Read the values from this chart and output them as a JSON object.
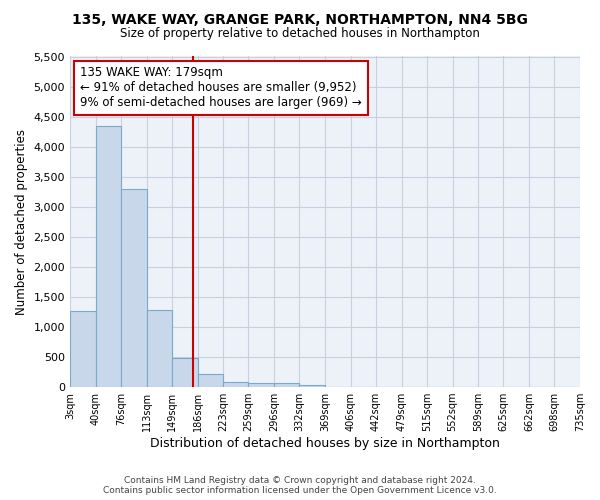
{
  "title1": "135, WAKE WAY, GRANGE PARK, NORTHAMPTON, NN4 5BG",
  "title2": "Size of property relative to detached houses in Northampton",
  "xlabel": "Distribution of detached houses by size in Northampton",
  "ylabel": "Number of detached properties",
  "bins_labels": [
    "3sqm",
    "40sqm",
    "76sqm",
    "113sqm",
    "149sqm",
    "186sqm",
    "223sqm",
    "259sqm",
    "296sqm",
    "332sqm",
    "369sqm",
    "406sqm",
    "442sqm",
    "479sqm",
    "515sqm",
    "552sqm",
    "589sqm",
    "625sqm",
    "662sqm",
    "698sqm",
    "735sqm"
  ],
  "bin_edges": [
    3,
    40,
    76,
    113,
    149,
    186,
    223,
    259,
    296,
    332,
    369,
    406,
    442,
    479,
    515,
    552,
    589,
    625,
    662,
    698,
    735
  ],
  "bar_heights": [
    1270,
    4350,
    3300,
    1290,
    480,
    215,
    88,
    75,
    60,
    40,
    0,
    0,
    0,
    0,
    0,
    0,
    0,
    0,
    0,
    0
  ],
  "bar_color": "#c8d8ea",
  "bar_edgecolor": "#7aaac8",
  "property_size": 179,
  "vline_color": "#cc0000",
  "annotation_line1": "135 WAKE WAY: 179sqm",
  "annotation_line2": "← 91% of detached houses are smaller (9,952)",
  "annotation_line3": "9% of semi-detached houses are larger (969) →",
  "annotation_boxcolor": "white",
  "annotation_boxedge": "#cc0000",
  "ylim": [
    0,
    5500
  ],
  "yticks": [
    0,
    500,
    1000,
    1500,
    2000,
    2500,
    3000,
    3500,
    4000,
    4500,
    5000,
    5500
  ],
  "footer1": "Contains HM Land Registry data © Crown copyright and database right 2024.",
  "footer2": "Contains public sector information licensed under the Open Government Licence v3.0.",
  "bg_color": "#ffffff",
  "plot_bg_color": "#edf2f9",
  "grid_color": "#c8d0e0"
}
